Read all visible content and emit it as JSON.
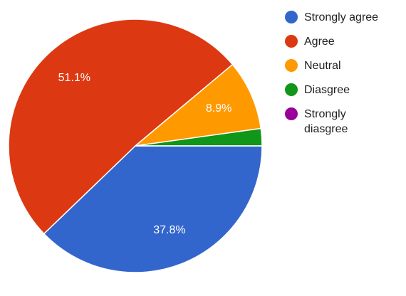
{
  "chart_data": {
    "type": "pie",
    "categories": [
      "Strongly agree",
      "Agree",
      "Neutral",
      "Diasgree",
      "Strongly diasgree"
    ],
    "values": [
      37.8,
      51.1,
      8.9,
      2.2,
      0
    ],
    "value_labels": [
      "37.8%",
      "51.1%",
      "8.9%",
      null,
      null
    ],
    "colors": [
      "#3366cc",
      "#dc3912",
      "#ff9900",
      "#109618",
      "#990099"
    ],
    "legend": "right"
  }
}
